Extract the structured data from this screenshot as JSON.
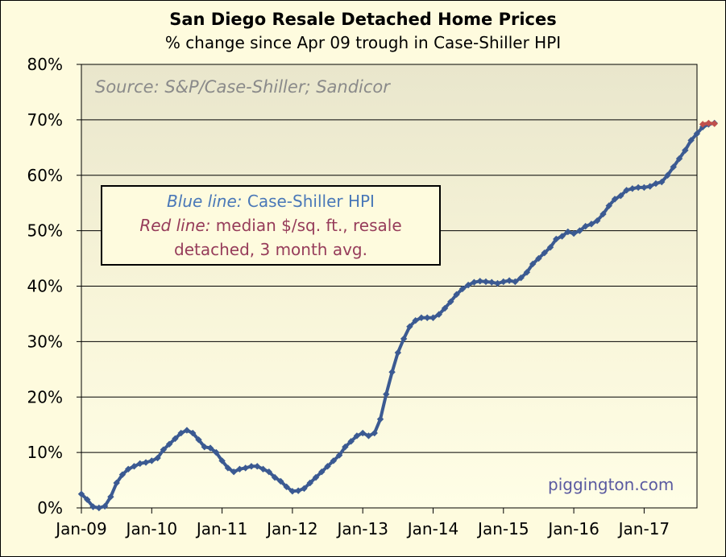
{
  "chart_data": {
    "type": "line",
    "title": "San Diego Resale Detached Home Prices",
    "subtitle": "% change since Apr 09 trough in Case-Shiller HPI",
    "source_note": "Source: S&P/Case-Shiller; Sandicor",
    "credit": "piggington.com",
    "legend": {
      "blue_label": "Blue line:",
      "blue_text": "Case-Shiller HPI",
      "red_label": "Red line:",
      "red_text_1": "median $/sq. ft., resale",
      "red_text_2": "detached, 3 month avg."
    },
    "x_ticks": [
      "Jan-09",
      "Jan-10",
      "Jan-11",
      "Jan-12",
      "Jan-13",
      "Jan-14",
      "Jan-15",
      "Jan-16",
      "Jan-17"
    ],
    "y_ticks": [
      "0%",
      "10%",
      "20%",
      "30%",
      "40%",
      "50%",
      "60%",
      "70%",
      "80%"
    ],
    "ylim": [
      0,
      80
    ],
    "grid": true,
    "series": [
      {
        "name": "Case-Shiller HPI",
        "color": "#3b5a92",
        "start": "Jan-09",
        "frequency": "monthly",
        "values": [
          2.5,
          1.5,
          0.2,
          0,
          0.3,
          2,
          4.5,
          6,
          7,
          7.5,
          8,
          8.2,
          8.5,
          9,
          10.5,
          11.5,
          12.5,
          13.5,
          14,
          13.5,
          12.3,
          11,
          10.8,
          10,
          8.5,
          7.2,
          6.5,
          7,
          7.2,
          7.5,
          7.5,
          7,
          6.5,
          5.5,
          4.8,
          3.8,
          3,
          3.1,
          3.5,
          4.5,
          5.5,
          6.5,
          7.5,
          8.5,
          9.5,
          11,
          12,
          13,
          13.5,
          13,
          13.5,
          16,
          20.5,
          24.5,
          28,
          30.5,
          32.7,
          33.8,
          34.3,
          34.3,
          34.3,
          34.9,
          36,
          37.2,
          38.5,
          39.5,
          40.2,
          40.7,
          40.9,
          40.8,
          40.7,
          40.5,
          40.8,
          41,
          40.8,
          41.5,
          42.5,
          44,
          45,
          46,
          47,
          48.5,
          49,
          49.8,
          49.5,
          50,
          50.8,
          51.2,
          51.8,
          53,
          54.5,
          55.7,
          56.3,
          57.3,
          57.6,
          57.8,
          57.8,
          58,
          58.5,
          58.8,
          60,
          61.5,
          63,
          64.5,
          66.3,
          67.5,
          68.7,
          69.2,
          69.4
        ]
      },
      {
        "name": "median $/sq. ft., resale detached, 3 month avg.",
        "color": "#c0504d",
        "start_index": 106,
        "values": [
          69.2,
          69.4,
          69.3
        ]
      }
    ]
  }
}
